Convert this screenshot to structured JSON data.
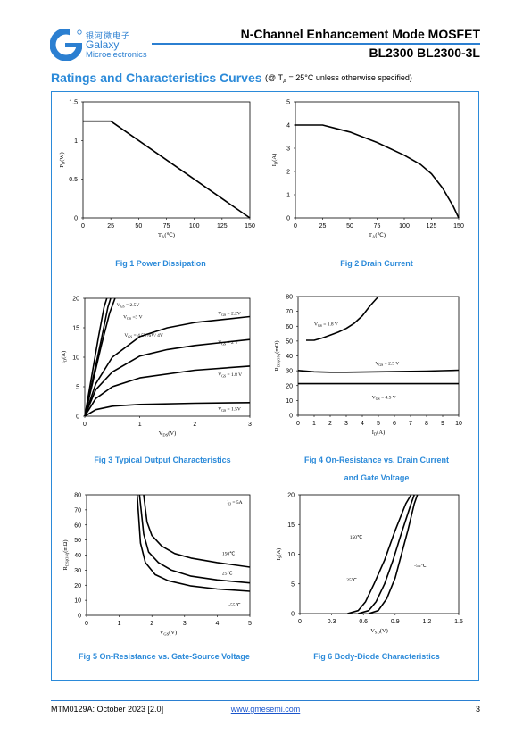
{
  "header": {
    "brand_cn": "银河微电子",
    "brand_en": "Galaxy",
    "brand_sub": "Microelectronics",
    "title": "N-Channel Enhancement Mode MOSFET",
    "part_numbers": "BL2300  BL2300-3L",
    "brand_color": "#2b7fd1"
  },
  "section": {
    "title": "Ratings and Characteristics Curves",
    "condition_prefix": "(@ T",
    "condition_sub": "A",
    "condition_suffix": " = 25°C unless otherwise specified)"
  },
  "chart_data": [
    {
      "id": "fig1",
      "type": "line",
      "caption": "Fig 1    Power Dissipation",
      "xlabel": "T",
      "xlabel_sub": "A",
      "xlabel_unit": "(℃)",
      "ylabel": "P",
      "ylabel_sub": "D",
      "ylabel_unit": "(W)",
      "xlim": [
        0,
        150
      ],
      "ylim": [
        0,
        1.5
      ],
      "xticks": [
        0,
        25,
        50,
        75,
        100,
        125,
        150
      ],
      "yticks": [
        0,
        0.5,
        1,
        1.5
      ],
      "series": [
        {
          "points": [
            [
              0,
              1.25
            ],
            [
              25,
              1.25
            ],
            [
              150,
              0
            ]
          ]
        }
      ],
      "labels": []
    },
    {
      "id": "fig2",
      "type": "line",
      "caption": "Fig 2    Drain Current",
      "xlabel": "T",
      "xlabel_sub": "A",
      "xlabel_unit": "(℃)",
      "ylabel": "I",
      "ylabel_sub": "D",
      "ylabel_unit": "(A)",
      "xlim": [
        0,
        150
      ],
      "ylim": [
        0,
        5
      ],
      "xticks": [
        0,
        25,
        50,
        75,
        100,
        125,
        150
      ],
      "yticks": [
        0,
        1,
        2,
        3,
        4,
        5
      ],
      "series": [
        {
          "points": [
            [
              0,
              4
            ],
            [
              25,
              4
            ],
            [
              50,
              3.7
            ],
            [
              75,
              3.25
            ],
            [
              100,
              2.7
            ],
            [
              115,
              2.3
            ],
            [
              125,
              1.9
            ],
            [
              135,
              1.3
            ],
            [
              145,
              0.5
            ],
            [
              150,
              0
            ]
          ]
        }
      ],
      "labels": []
    },
    {
      "id": "fig3",
      "type": "line",
      "caption": "Fig 3    Typical Output Characteristics",
      "xlabel": "V",
      "xlabel_sub": "DS",
      "xlabel_unit": "(V)",
      "ylabel": "I",
      "ylabel_sub": "D",
      "ylabel_unit": "(A)",
      "xlim": [
        0,
        3
      ],
      "ylim": [
        0,
        20
      ],
      "xticks": [
        0,
        1,
        2,
        3
      ],
      "yticks": [
        0,
        5,
        10,
        15,
        20
      ],
      "series": [
        {
          "points": [
            [
              0,
              0
            ],
            [
              0.2,
              1.1
            ],
            [
              0.5,
              1.7
            ],
            [
              1,
              2
            ],
            [
              2,
              2.2
            ],
            [
              3,
              2.3
            ]
          ]
        },
        {
          "points": [
            [
              0,
              0
            ],
            [
              0.2,
              3
            ],
            [
              0.5,
              5
            ],
            [
              1,
              6.5
            ],
            [
              2,
              7.8
            ],
            [
              3,
              8.5
            ]
          ]
        },
        {
          "points": [
            [
              0,
              0
            ],
            [
              0.2,
              4.5
            ],
            [
              0.5,
              7.5
            ],
            [
              1,
              10.2
            ],
            [
              1.5,
              11.3
            ],
            [
              2,
              12
            ],
            [
              3,
              13
            ]
          ]
        },
        {
          "points": [
            [
              0,
              0
            ],
            [
              0.2,
              5.5
            ],
            [
              0.5,
              10
            ],
            [
              1,
              13.5
            ],
            [
              1.5,
              15
            ],
            [
              2,
              15.9
            ],
            [
              3,
              16.9
            ]
          ]
        },
        {
          "points": [
            [
              0,
              0
            ],
            [
              0.15,
              6
            ],
            [
              0.3,
              12
            ],
            [
              0.45,
              17.5
            ],
            [
              0.55,
              20
            ]
          ]
        },
        {
          "points": [
            [
              0,
              0
            ],
            [
              0.15,
              6.5
            ],
            [
              0.3,
              13
            ],
            [
              0.42,
              18.5
            ],
            [
              0.47,
              20
            ]
          ]
        },
        {
          "points": [
            [
              0,
              0
            ],
            [
              0.12,
              6.5
            ],
            [
              0.25,
              13.5
            ],
            [
              0.35,
              18.5
            ],
            [
              0.4,
              20
            ]
          ]
        }
      ],
      "labels": [
        {
          "text": "V",
          "sub": "GS",
          "rest": " = 2.5V",
          "x": 0.58,
          "y": 18.6
        },
        {
          "text": "V",
          "sub": "GS",
          "rest": " =3 V",
          "x": 0.7,
          "y": 16.6
        },
        {
          "text": "V",
          "sub": "GS",
          "rest": " = 4.5V/6V/ 4V",
          "x": 0.72,
          "y": 13.5
        },
        {
          "text": "V",
          "sub": "GS",
          "rest": " = 2.2V",
          "x": 2.42,
          "y": 17.2
        },
        {
          "text": "V",
          "sub": "GS",
          "rest": " = 2 V",
          "x": 2.42,
          "y": 12.3
        },
        {
          "text": "V",
          "sub": "GS",
          "rest": " = 1.8 V",
          "x": 2.42,
          "y": 6.8
        },
        {
          "text": "V",
          "sub": "GS",
          "rest": " = 1.5V",
          "x": 2.42,
          "y": 1.0
        }
      ]
    },
    {
      "id": "fig4",
      "type": "line",
      "caption": "Fig 4    On-Resistance vs. Drain Current",
      "caption2": "and Gate Voltage",
      "xlabel": "I",
      "xlabel_sub": "D",
      "xlabel_unit": "(A)",
      "ylabel": "R",
      "ylabel_sub": "DS(ON)",
      "ylabel_unit": "(mΩ)",
      "xlim": [
        0,
        10
      ],
      "ylim": [
        0,
        80
      ],
      "xticks": [
        0,
        1,
        2,
        3,
        4,
        5,
        6,
        7,
        8,
        9,
        10
      ],
      "yticks": [
        0,
        10,
        20,
        30,
        40,
        50,
        60,
        70,
        80
      ],
      "series": [
        {
          "points": [
            [
              0.5,
              50.5
            ],
            [
              1,
              50.5
            ],
            [
              1.5,
              52
            ],
            [
              2,
              54
            ],
            [
              2.5,
              56
            ],
            [
              3,
              58.5
            ],
            [
              3.5,
              62
            ],
            [
              4,
              67
            ],
            [
              4.5,
              74
            ],
            [
              5,
              80
            ]
          ]
        },
        {
          "points": [
            [
              0,
              30.2
            ],
            [
              1,
              29.3
            ],
            [
              2,
              29
            ],
            [
              3,
              29
            ],
            [
              4,
              29.1
            ],
            [
              5,
              29.3
            ],
            [
              6,
              29.4
            ],
            [
              7,
              29.6
            ],
            [
              8,
              29.8
            ],
            [
              9,
              30.1
            ],
            [
              10,
              30.4
            ]
          ]
        },
        {
          "points": [
            [
              0,
              21.3
            ],
            [
              1,
              21.3
            ],
            [
              2,
              21.3
            ],
            [
              3,
              21.3
            ],
            [
              4,
              21.3
            ],
            [
              5,
              21.3
            ],
            [
              6,
              21.3
            ],
            [
              7,
              21.3
            ],
            [
              8,
              21.3
            ],
            [
              9,
              21.3
            ],
            [
              10,
              21.3
            ]
          ]
        }
      ],
      "labels": [
        {
          "text": "V",
          "sub": "GS",
          "rest": " = 1.8 V",
          "x": 1.0,
          "y": 60.5
        },
        {
          "text": "V",
          "sub": "GS",
          "rest": " = 2.5 V",
          "x": 4.8,
          "y": 34
        },
        {
          "text": "V",
          "sub": "GS",
          "rest": " = 4.5 V",
          "x": 4.6,
          "y": 11
        }
      ]
    },
    {
      "id": "fig5",
      "type": "line",
      "caption": "Fig 5    On-Resistance vs. Gate-Source Voltage",
      "xlabel": "V",
      "xlabel_sub": "GS",
      "xlabel_unit": "(V)",
      "ylabel": "R",
      "ylabel_sub": "DS(ON)",
      "ylabel_unit": "(mΩ)",
      "xlim": [
        0,
        5
      ],
      "ylim": [
        0,
        80
      ],
      "xticks": [
        0,
        1,
        2,
        3,
        4,
        5
      ],
      "yticks": [
        0,
        10,
        20,
        30,
        40,
        50,
        60,
        70,
        80
      ],
      "series": [
        {
          "points": [
            [
              1.75,
              80
            ],
            [
              1.85,
              62
            ],
            [
              2,
              53
            ],
            [
              2.3,
              46
            ],
            [
              2.7,
              41
            ],
            [
              3.2,
              38
            ],
            [
              4,
              35
            ],
            [
              5,
              32
            ]
          ]
        },
        {
          "points": [
            [
              1.62,
              80
            ],
            [
              1.75,
              54
            ],
            [
              1.9,
              42
            ],
            [
              2.2,
              35
            ],
            [
              2.6,
              30
            ],
            [
              3.2,
              26
            ],
            [
              4,
              23.5
            ],
            [
              5,
              21.5
            ]
          ]
        },
        {
          "points": [
            [
              1.55,
              80
            ],
            [
              1.65,
              48
            ],
            [
              1.8,
              35
            ],
            [
              2.1,
              27
            ],
            [
              2.5,
              23
            ],
            [
              3.2,
              19.5
            ],
            [
              4,
              17.5
            ],
            [
              5,
              16
            ]
          ]
        }
      ],
      "labels": [
        {
          "text": "I",
          "sub": "D",
          "rest": " = 5A",
          "x": 4.3,
          "y": 74
        },
        {
          "text": "150℃",
          "sub": "",
          "rest": "",
          "x": 4.15,
          "y": 40
        },
        {
          "text": "25℃",
          "sub": "",
          "rest": "",
          "x": 4.15,
          "y": 27
        },
        {
          "text": "-55℃",
          "sub": "",
          "rest": "",
          "x": 4.35,
          "y": 6
        }
      ]
    },
    {
      "id": "fig6",
      "type": "line",
      "caption": "Fig 6    Body-Diode Characteristics",
      "xlabel": "V",
      "xlabel_sub": "SD",
      "xlabel_unit": "(V)",
      "ylabel": "I",
      "ylabel_sub": "S",
      "ylabel_unit": "(A)",
      "xlim": [
        0,
        1.5
      ],
      "ylim": [
        0,
        20
      ],
      "xticks": [
        0,
        0.3,
        0.6,
        0.9,
        1.2,
        1.5
      ],
      "yticks": [
        0,
        5,
        10,
        15,
        20
      ],
      "series": [
        {
          "points": [
            [
              0.45,
              0
            ],
            [
              0.55,
              0.5
            ],
            [
              0.62,
              2
            ],
            [
              0.7,
              5
            ],
            [
              0.8,
              9
            ],
            [
              0.9,
              14
            ],
            [
              1.0,
              18.5
            ],
            [
              1.05,
              20
            ]
          ]
        },
        {
          "points": [
            [
              0.55,
              0
            ],
            [
              0.65,
              0.5
            ],
            [
              0.72,
              2
            ],
            [
              0.8,
              5
            ],
            [
              0.88,
              9
            ],
            [
              0.95,
              13
            ],
            [
              1.05,
              18.5
            ],
            [
              1.08,
              20
            ]
          ]
        },
        {
          "points": [
            [
              0.65,
              0
            ],
            [
              0.74,
              0.5
            ],
            [
              0.82,
              2.5
            ],
            [
              0.9,
              6
            ],
            [
              0.96,
              10
            ],
            [
              1.02,
              14
            ],
            [
              1.08,
              18.5
            ],
            [
              1.11,
              20
            ]
          ]
        }
      ],
      "labels": [
        {
          "text": "150℃",
          "sub": "",
          "rest": "",
          "x": 0.47,
          "y": 12.6
        },
        {
          "text": "25℃",
          "sub": "",
          "rest": "",
          "x": 0.44,
          "y": 5.4
        },
        {
          "text": "-55℃",
          "sub": "",
          "rest": "",
          "x": 1.08,
          "y": 7.8
        }
      ]
    }
  ],
  "footer": {
    "doc_id": "MTM0129A: October 2023 [2.0]",
    "url": "www.gmesemi.com",
    "page": "3"
  }
}
